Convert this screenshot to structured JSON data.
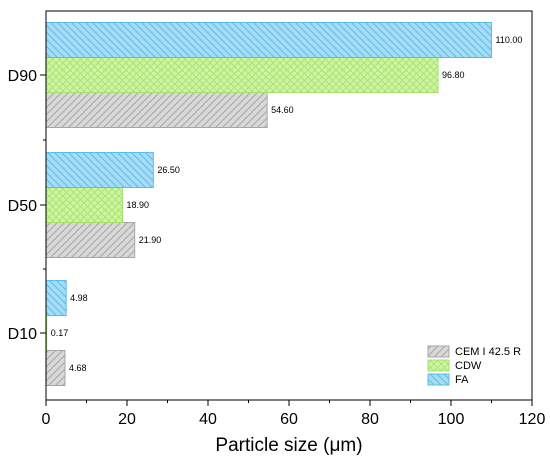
{
  "chart_data": {
    "type": "bar",
    "orientation": "horizontal",
    "categories": [
      "D10",
      "D50",
      "D90"
    ],
    "series": [
      {
        "name": "CEM I 42.5 R",
        "values": [
          4.68,
          21.9,
          54.6
        ],
        "labels": [
          "4.68",
          "21.90",
          "54.60"
        ],
        "color": "#d9d9d9",
        "stroke": "#a6a6a6",
        "hatch": "diagonal-right"
      },
      {
        "name": "CDW",
        "values": [
          0.17,
          18.9,
          96.8
        ],
        "labels": [
          "0.17",
          "18.90",
          "96.80"
        ],
        "color": "#ccf5a0",
        "stroke": "#a8e070",
        "hatch": "crosshatch"
      },
      {
        "name": "FA",
        "values": [
          4.98,
          26.5,
          110.0
        ],
        "labels": [
          "4.98",
          "26.50",
          "110.00"
        ],
        "color": "#a6dcf5",
        "stroke": "#5bbce8",
        "hatch": "diagonal-left"
      }
    ],
    "xlabel": "Particle size (μm)",
    "ylabel": "",
    "title": "",
    "xlim": [
      0,
      120
    ],
    "xticks": [
      "0",
      "20",
      "40",
      "60",
      "80",
      "100",
      "120"
    ],
    "grid": false,
    "legend_position": "bottom-right"
  }
}
